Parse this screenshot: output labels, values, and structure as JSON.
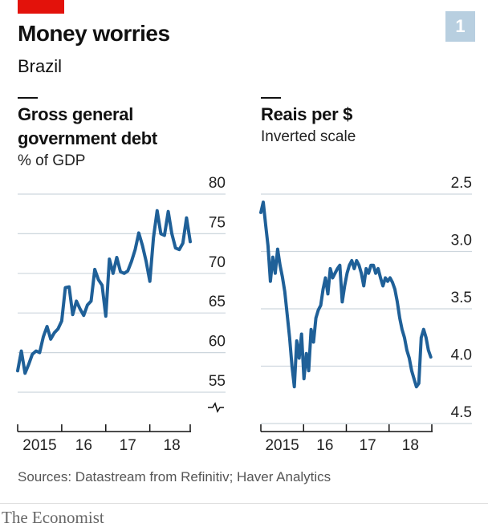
{
  "badge": "1",
  "title": "Money worries",
  "subtitle": "Brazil",
  "source": "Sources: Datastream from Refinitiv; Haver Analytics",
  "brand": "The Economist",
  "chart_data": [
    {
      "type": "line",
      "title": "Gross general government debt",
      "subtitle": "% of GDP",
      "color": "#1f6098",
      "x": [
        2015,
        2015.083,
        2015.167,
        2015.25,
        2015.333,
        2015.417,
        2015.5,
        2015.583,
        2015.667,
        2015.75,
        2015.833,
        2015.917,
        2016,
        2016.083,
        2016.167,
        2016.25,
        2016.333,
        2016.417,
        2016.5,
        2016.583,
        2016.667,
        2016.75,
        2016.833,
        2016.917,
        2017,
        2017.083,
        2017.167,
        2017.25,
        2017.333,
        2017.417,
        2017.5,
        2017.583,
        2017.667,
        2017.75,
        2017.833,
        2017.917,
        2018,
        2018.083,
        2018.167,
        2018.25,
        2018.333,
        2018.417,
        2018.5,
        2018.583,
        2018.667,
        2018.75,
        2018.833,
        2018.917
      ],
      "values": [
        57.7,
        60.2,
        57.4,
        58.5,
        59.8,
        60.2,
        60.0,
        62.0,
        63.3,
        61.7,
        62.5,
        63.0,
        64.0,
        68.2,
        68.3,
        64.8,
        66.5,
        65.5,
        64.7,
        66.0,
        66.5,
        70.5,
        69.2,
        68.5,
        64.6,
        71.8,
        70.0,
        72.0,
        70.2,
        70.0,
        70.3,
        71.5,
        73.0,
        75.1,
        73.5,
        71.5,
        69.0,
        74.5,
        77.9,
        75.0,
        74.8,
        77.8,
        75.0,
        73.2,
        73.0,
        73.8,
        77.0,
        74.0
      ],
      "xlim": [
        2015,
        2018.917
      ],
      "xticks": [
        {
          "value": 2015.5,
          "label": "2015"
        },
        {
          "value": 2016.5,
          "label": "16"
        },
        {
          "value": 2017.5,
          "label": "17"
        },
        {
          "value": 2018.5,
          "label": "18"
        }
      ],
      "xtickmarks": [
        2016,
        2017,
        2018
      ],
      "ylim": [
        55,
        80
      ],
      "yticks": [
        55,
        60,
        65,
        70,
        75,
        80
      ],
      "grid": true,
      "broken_axis": true
    },
    {
      "type": "line",
      "title": "Reais per $",
      "subtitle": "Inverted scale",
      "color": "#1f6098",
      "x": [
        2015,
        2015.056,
        2015.112,
        2015.168,
        2015.224,
        2015.28,
        2015.336,
        2015.392,
        2015.448,
        2015.504,
        2015.56,
        2015.616,
        2015.672,
        2015.728,
        2015.784,
        2015.84,
        2015.896,
        2015.952,
        2016.008,
        2016.064,
        2016.12,
        2016.176,
        2016.232,
        2016.288,
        2016.344,
        2016.4,
        2016.456,
        2016.512,
        2016.568,
        2016.624,
        2016.68,
        2016.736,
        2016.792,
        2016.848,
        2016.904,
        2016.96,
        2017.016,
        2017.072,
        2017.128,
        2017.184,
        2017.24,
        2017.296,
        2017.352,
        2017.408,
        2017.464,
        2017.52,
        2017.576,
        2017.632,
        2017.688,
        2017.744,
        2017.8,
        2017.856,
        2017.912,
        2017.968,
        2018.024,
        2018.08,
        2018.136,
        2018.192,
        2018.248,
        2018.304,
        2018.36,
        2018.416,
        2018.472,
        2018.528,
        2018.584,
        2018.64,
        2018.696,
        2018.752,
        2018.808,
        2018.864,
        2018.92,
        2018.976
      ],
      "values": [
        2.66,
        2.57,
        2.77,
        2.95,
        3.26,
        3.05,
        3.19,
        2.98,
        3.12,
        3.22,
        3.35,
        3.55,
        3.75,
        4.0,
        4.18,
        3.78,
        3.93,
        3.72,
        4.11,
        3.89,
        4.04,
        3.68,
        3.79,
        3.58,
        3.51,
        3.47,
        3.33,
        3.23,
        3.37,
        3.15,
        3.23,
        3.19,
        3.15,
        3.12,
        3.44,
        3.3,
        3.19,
        3.12,
        3.08,
        3.15,
        3.08,
        3.12,
        3.19,
        3.3,
        3.15,
        3.19,
        3.12,
        3.12,
        3.19,
        3.15,
        3.23,
        3.3,
        3.23,
        3.26,
        3.23,
        3.27,
        3.33,
        3.44,
        3.58,
        3.68,
        3.75,
        3.86,
        3.93,
        4.04,
        4.11,
        4.18,
        4.15,
        3.75,
        3.68,
        3.75,
        3.86,
        3.92
      ],
      "xlim": [
        2015,
        2019
      ],
      "xticks": [
        {
          "value": 2015.5,
          "label": "2015"
        },
        {
          "value": 2016.5,
          "label": "16"
        },
        {
          "value": 2017.5,
          "label": "17"
        },
        {
          "value": 2018.5,
          "label": "18"
        }
      ],
      "xtickmarks": [
        2016,
        2017,
        2018
      ],
      "ylim": [
        2.5,
        4.5
      ],
      "yticks": [
        2.5,
        {
          "value": 3,
          "label": "3.0"
        },
        3.5,
        {
          "value": 4,
          "label": "4.0"
        },
        4.5
      ],
      "grid": true,
      "yinverted": true
    }
  ]
}
